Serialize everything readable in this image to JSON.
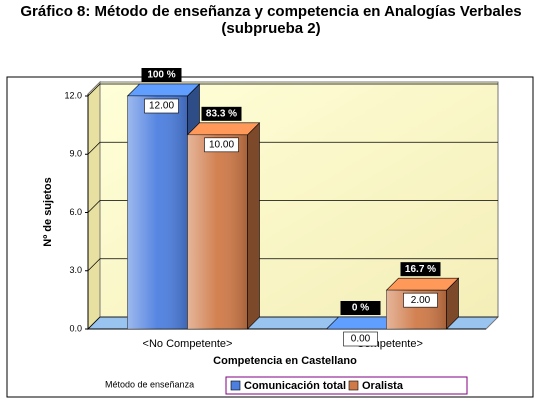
{
  "chart_data": {
    "type": "bar3d",
    "title": "Gráfico 8: Método de enseñanza y competencia en Analogías Verbales",
    "subtitle": "(subprueba 2)",
    "x_label": "Competencia en Castellano",
    "y_label": "Nº de sujetos",
    "legend_title": "Método de enseñanza",
    "categories": [
      "<No Competente>",
      "<Competente>"
    ],
    "series": [
      {
        "name": "Comunicación total",
        "color": "#4d7fe0",
        "values": [
          12,
          0
        ],
        "value_labels": [
          "12.00",
          "0.00"
        ],
        "percent_labels": [
          "100 %",
          "0 %"
        ]
      },
      {
        "name": "Oralista",
        "color": "#d07a48",
        "values": [
          10,
          2
        ],
        "value_labels": [
          "10.00",
          "2.00"
        ],
        "percent_labels": [
          "83.3 %",
          "16.7 %"
        ]
      }
    ],
    "ylim": [
      0,
      12
    ],
    "yticks": [
      {
        "value": 0,
        "label": "0.0"
      },
      {
        "value": 3,
        "label": "3.0"
      },
      {
        "value": 6,
        "label": "6.0"
      },
      {
        "value": 9,
        "label": "9.0"
      },
      {
        "value": 12,
        "label": "12.0"
      }
    ],
    "grid": true
  }
}
